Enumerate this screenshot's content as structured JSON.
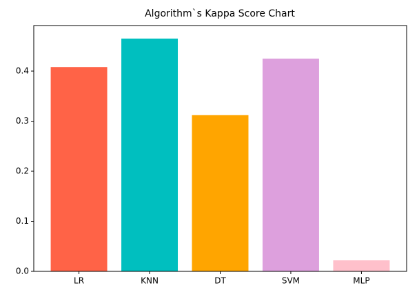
{
  "chart_data": {
    "type": "bar",
    "title": "Algorithm`s Kappa Score Chart",
    "categories": [
      "LR",
      "KNN",
      "DT",
      "SVM",
      "MLP"
    ],
    "values": [
      0.408,
      0.465,
      0.312,
      0.425,
      0.022
    ],
    "colors": [
      "#ff6347",
      "#00bfbf",
      "#ffa500",
      "#dda0dd",
      "#ffc0cb"
    ],
    "ylim": [
      0,
      0.491
    ],
    "yticks": [
      {
        "value": 0,
        "label": "0.0"
      },
      0.1,
      0.2,
      0.3,
      0.4
    ],
    "grid": false
  }
}
